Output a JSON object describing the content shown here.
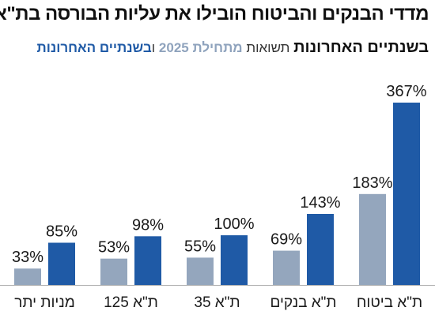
{
  "title": "מדדי הבנקים והביטוח הובילו את עליות הבורסה בת\"א",
  "subtitle": {
    "main": "בשנתיים האחרונות",
    "mid": " תשואות ",
    "since_2025": "מתחילת 2025",
    "and": " ו",
    "recent": "בשנתיים האחרונות"
  },
  "colors": {
    "since_2025": "#94a6bd",
    "recent": "#1f5aa6",
    "axis": "#b0b0b0"
  },
  "chart_data": {
    "type": "bar",
    "categories": [
      "מניות יתר",
      "ת\"א 125",
      "ת\"א 35",
      "ת\"א בנקים",
      "ת\"א ביטוח"
    ],
    "series": [
      {
        "name": "מתחילת 2025",
        "values": [
          33,
          53,
          55,
          69,
          183
        ]
      },
      {
        "name": "בשנתיים האחרונות",
        "values": [
          85,
          98,
          100,
          143,
          367
        ]
      }
    ],
    "labels": [
      [
        "33%",
        "53%",
        "55%",
        "69%",
        "183%"
      ],
      [
        "85%",
        "98%",
        "100%",
        "143%",
        "367%"
      ]
    ],
    "unit": "%",
    "ylim": [
      0,
      367
    ],
    "grid": false,
    "legend": "subtitle"
  }
}
